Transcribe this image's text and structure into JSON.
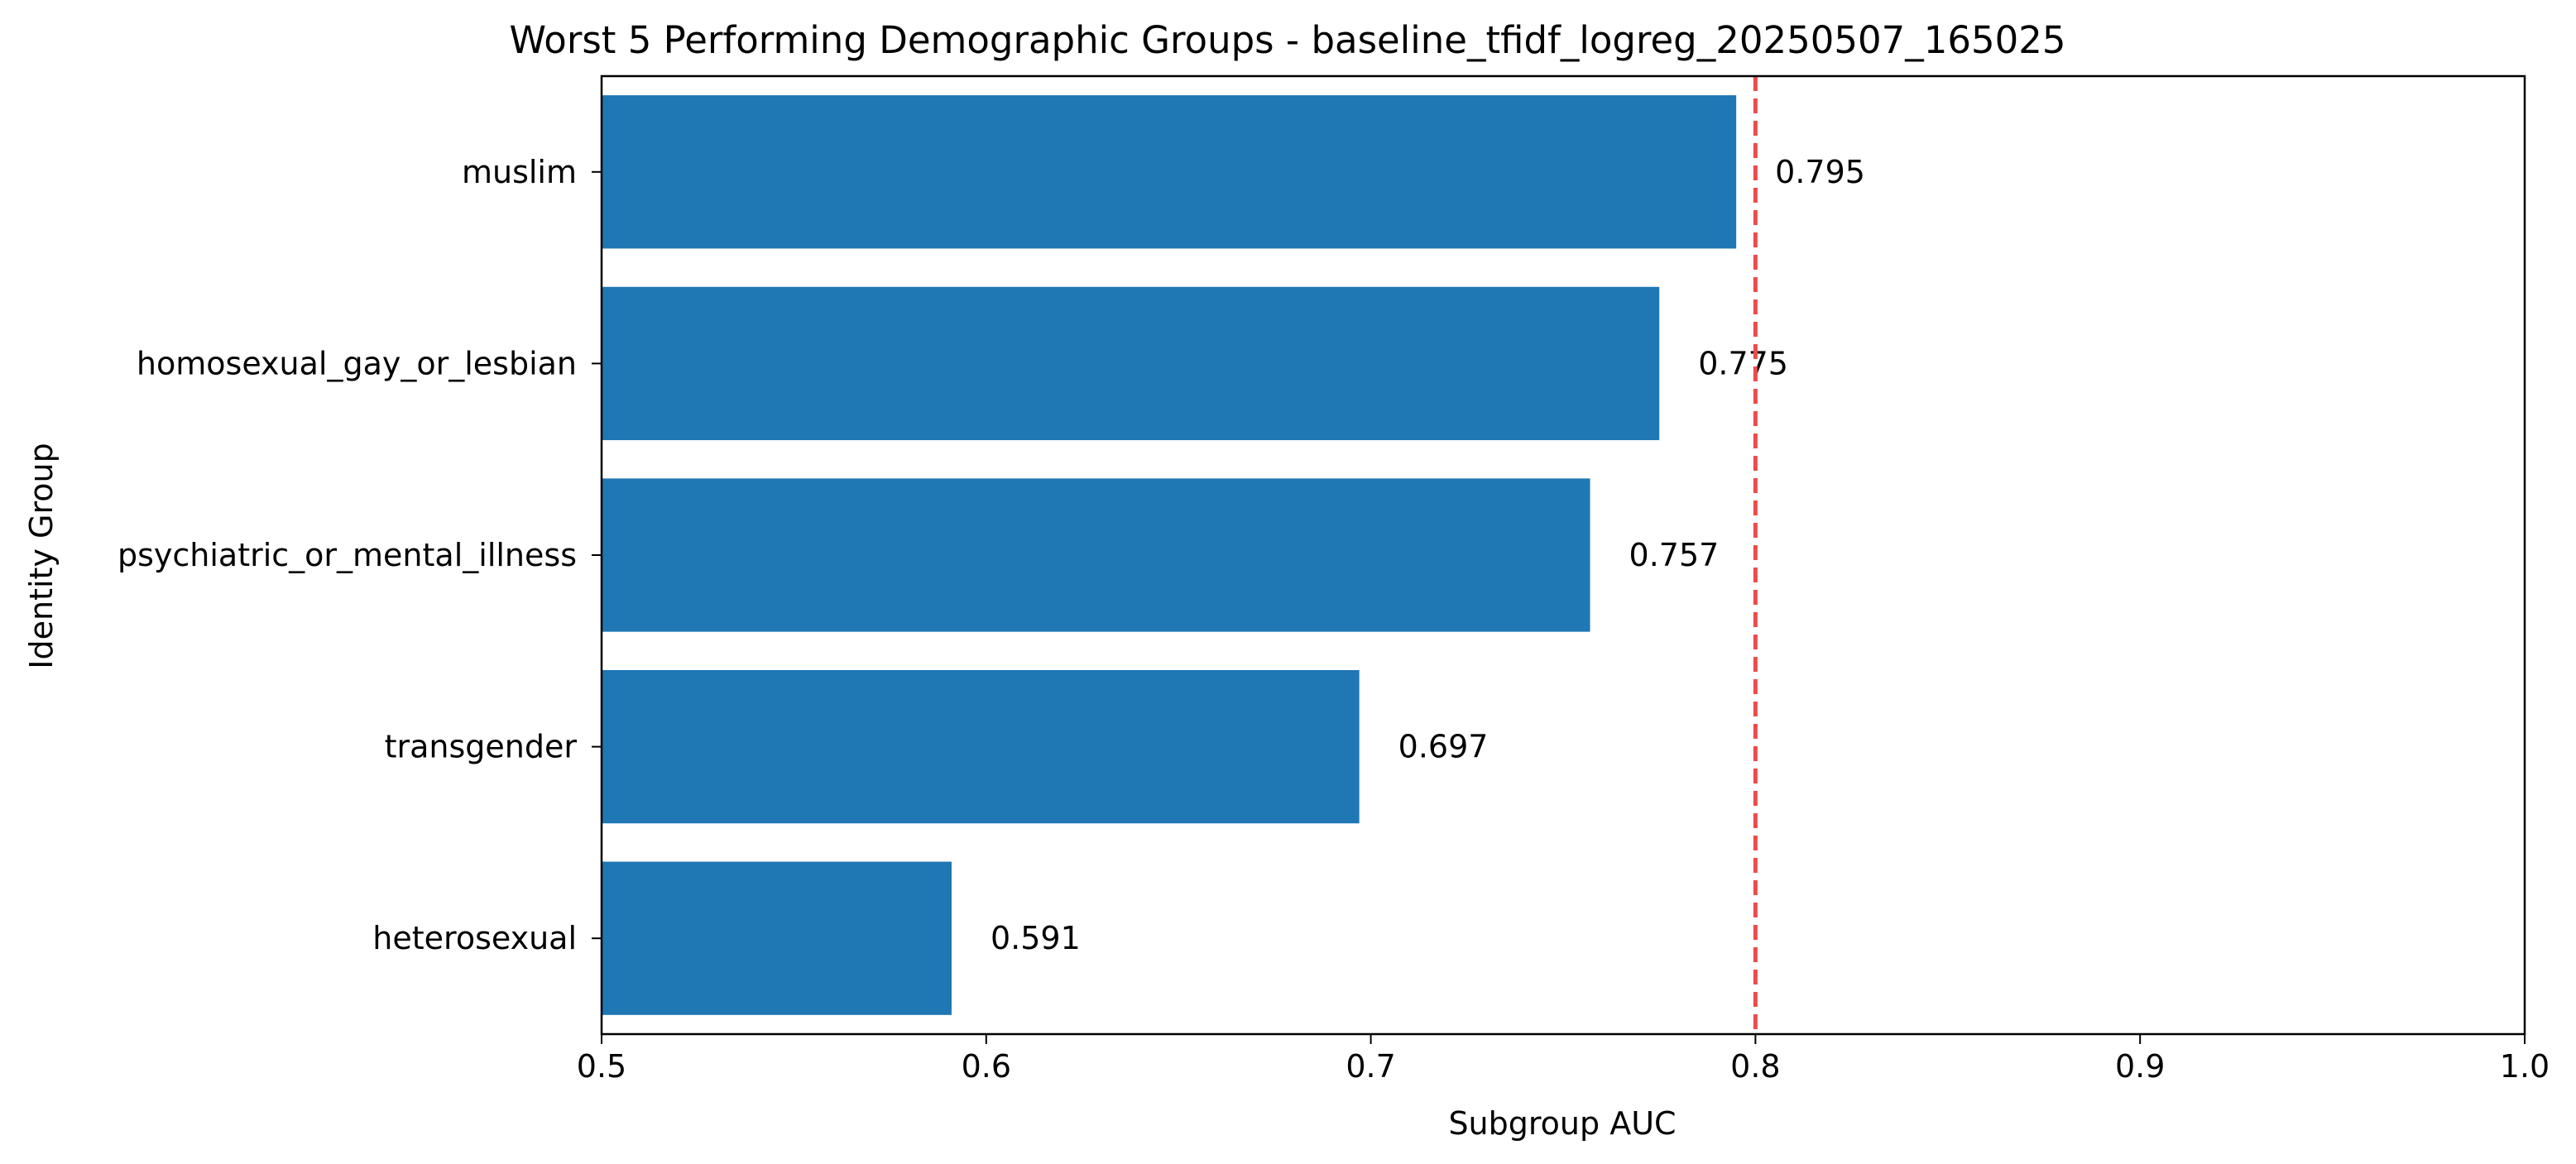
{
  "chart_data": {
    "type": "bar",
    "orientation": "horizontal",
    "title": "Worst 5 Performing Demographic Groups - baseline_tfidf_logreg_20250507_165025",
    "xlabel": "Subgroup AUC",
    "ylabel": "Identity Group",
    "xlim": [
      0.5,
      1.0
    ],
    "xticks": [
      "0.5",
      "0.6",
      "0.7",
      "0.8",
      "0.9",
      "1.0"
    ],
    "categories": [
      "muslim",
      "homosexual_gay_or_lesbian",
      "psychiatric_or_mental_illness",
      "transgender",
      "heterosexual"
    ],
    "values": [
      0.795,
      0.775,
      0.757,
      0.697,
      0.591
    ],
    "value_labels": [
      "0.795",
      "0.775",
      "0.757",
      "0.697",
      "0.591"
    ],
    "reference_line": {
      "x": 0.8,
      "style": "dashed",
      "color": "#f04a4a"
    },
    "bar_color": "#1f77b4",
    "grid": false
  }
}
